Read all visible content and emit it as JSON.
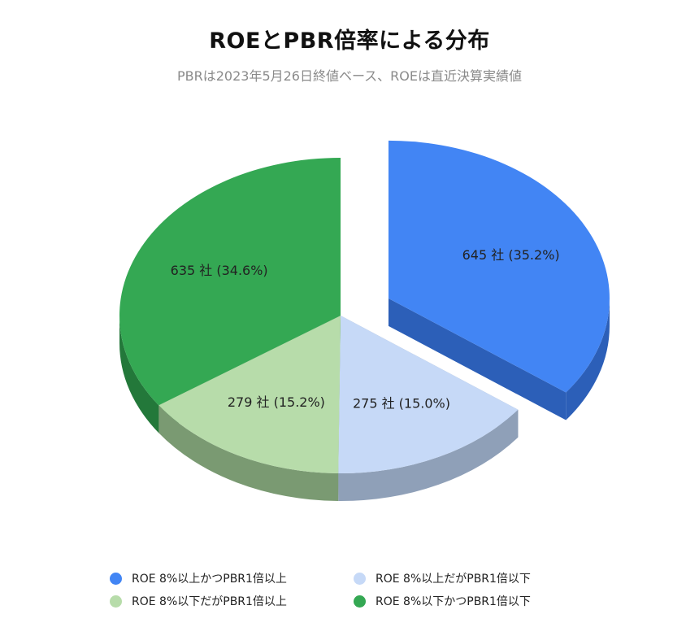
{
  "chart_data": {
    "type": "pie",
    "title": "ROEとPBR倍率による分布",
    "subtitle": "PBRは2023年5月26日終値ベース、ROEは直近決算実績値",
    "slices": [
      {
        "name": "ROE 8%以上かつPBR1倍以上",
        "value": 645,
        "percent": 35.2,
        "label": "645 社 (35.2%)",
        "color": "#4285f4",
        "side_color": "#2c5fb8",
        "exploded": true
      },
      {
        "name": "ROE 8%以上だがPBR1倍以下",
        "value": 275,
        "percent": 15.0,
        "label": "275 社 (15.0%)",
        "color": "#c6d9f7",
        "side_color": "#8fa0b8",
        "exploded": false
      },
      {
        "name": "ROE 8%以下だがPBR1倍以上",
        "value": 279,
        "percent": 15.2,
        "label": "279 社 (15.2%)",
        "color": "#b7dcaa",
        "side_color": "#7a9a72",
        "exploded": false
      },
      {
        "name": "ROE 8%以下かつPBR1倍以下",
        "value": 635,
        "percent": 34.6,
        "label": "635 社 (34.6%)",
        "color": "#34a853",
        "side_color": "#23783a",
        "exploded": false
      }
    ],
    "legend_position": "bottom",
    "style": "3d-exploded-pie"
  },
  "legend": {
    "items": [
      {
        "label": "ROE 8%以上かつPBR1倍以上",
        "color": "#4285f4"
      },
      {
        "label": "ROE 8%以上だがPBR1倍以下",
        "color": "#c6d9f7"
      },
      {
        "label": "ROE 8%以下だがPBR1倍以上",
        "color": "#b7dcaa"
      },
      {
        "label": "ROE 8%以下かつPBR1倍以下",
        "color": "#34a853"
      }
    ]
  }
}
